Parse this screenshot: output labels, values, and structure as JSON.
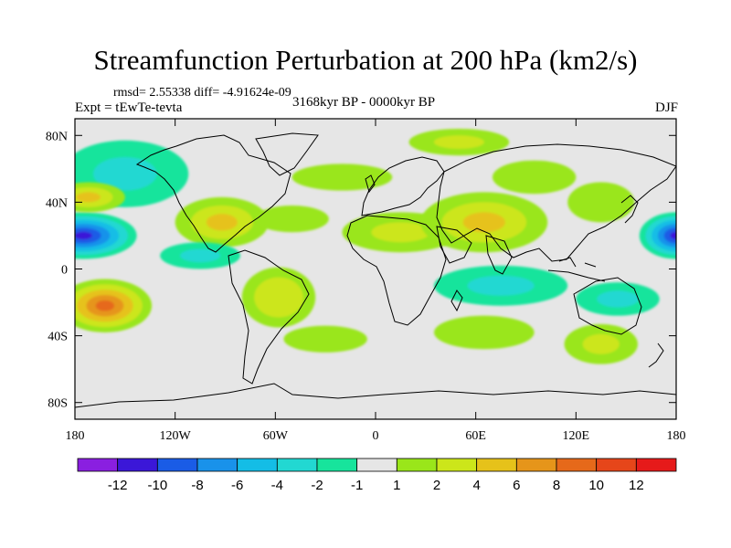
{
  "chart_data": {
    "type": "heatmap",
    "title": "Streamfunction Perturbation at 200 hPa (km2/s)",
    "stats": "rmsd= 2.55338 diff= -4.91624e-09",
    "experiment": "Expt = tEwTe-tevta",
    "period": "3168kyr BP - 0000kyr BP",
    "season": "DJF",
    "xlim": [
      -180,
      180
    ],
    "ylim": [
      -90,
      90
    ],
    "x_ticks": [
      {
        "value": -180,
        "label": "180"
      },
      {
        "value": -120,
        "label": "120W"
      },
      {
        "value": -60,
        "label": "60W"
      },
      {
        "value": 0,
        "label": "0"
      },
      {
        "value": 60,
        "label": "60E"
      },
      {
        "value": 120,
        "label": "120E"
      },
      {
        "value": 180,
        "label": "180"
      }
    ],
    "y_ticks": [
      {
        "value": 80,
        "label": "80N"
      },
      {
        "value": 40,
        "label": "40N"
      },
      {
        "value": 0,
        "label": "0"
      },
      {
        "value": -40,
        "label": "40S"
      },
      {
        "value": -80,
        "label": "80S"
      }
    ],
    "levels": [
      -12,
      -10,
      -8,
      -6,
      -4,
      -2,
      -1,
      1,
      2,
      4,
      6,
      8,
      10,
      12
    ],
    "level_labels": [
      "-12",
      "-10",
      "-8",
      "-6",
      "-4",
      "-2",
      "-1",
      "1",
      "2",
      "4",
      "6",
      "8",
      "10",
      "12"
    ],
    "colors": [
      "#8a1fe0",
      "#3b17d8",
      "#1a5ce6",
      "#1992ea",
      "#14bde6",
      "#22d8d2",
      "#17e49c",
      "#e6e6e6",
      "#9ae61a",
      "#cce61a",
      "#e6c21a",
      "#e6951a",
      "#e6691a",
      "#e6461a",
      "#e61a1a"
    ],
    "anomalies": [
      {
        "lon": -175,
        "lat": 20,
        "rlon": 32,
        "rlat": 14,
        "value": -11
      },
      {
        "lon": 180,
        "lat": 20,
        "rlon": 22,
        "rlat": 14,
        "value": -11
      },
      {
        "lon": -150,
        "lat": 57,
        "rlon": 38,
        "rlat": 20,
        "value": -3
      },
      {
        "lon": -172,
        "lat": 43,
        "rlon": 22,
        "rlat": 9,
        "value": 5
      },
      {
        "lon": -162,
        "lat": -22,
        "rlon": 28,
        "rlat": 16,
        "value": 9
      },
      {
        "lon": -92,
        "lat": 28,
        "rlon": 28,
        "rlat": 15,
        "value": 5
      },
      {
        "lon": -105,
        "lat": 8,
        "rlon": 24,
        "rlat": 8,
        "value": -3
      },
      {
        "lon": -58,
        "lat": -17,
        "rlon": 22,
        "rlat": 18,
        "value": 4
      },
      {
        "lon": -50,
        "lat": 30,
        "rlon": 22,
        "rlat": 8,
        "value": 2
      },
      {
        "lon": -20,
        "lat": 55,
        "rlon": 30,
        "rlat": 8,
        "value": 2
      },
      {
        "lon": 15,
        "lat": 22,
        "rlon": 35,
        "rlat": 12,
        "value": 3
      },
      {
        "lon": 65,
        "lat": 28,
        "rlon": 38,
        "rlat": 18,
        "value": 5
      },
      {
        "lon": 50,
        "lat": 76,
        "rlon": 30,
        "rlat": 8,
        "value": 3
      },
      {
        "lon": 95,
        "lat": 55,
        "rlon": 25,
        "rlat": 10,
        "value": 2
      },
      {
        "lon": 135,
        "lat": 40,
        "rlon": 20,
        "rlat": 12,
        "value": 2
      },
      {
        "lon": 75,
        "lat": -10,
        "rlon": 40,
        "rlat": 12,
        "value": -2
      },
      {
        "lon": 145,
        "lat": -18,
        "rlon": 25,
        "rlat": 10,
        "value": -2
      },
      {
        "lon": 65,
        "lat": -38,
        "rlon": 30,
        "rlat": 10,
        "value": 2
      },
      {
        "lon": 135,
        "lat": -45,
        "rlon": 22,
        "rlat": 12,
        "value": 3
      },
      {
        "lon": -30,
        "lat": -42,
        "rlon": 25,
        "rlat": 8,
        "value": 2
      }
    ]
  }
}
